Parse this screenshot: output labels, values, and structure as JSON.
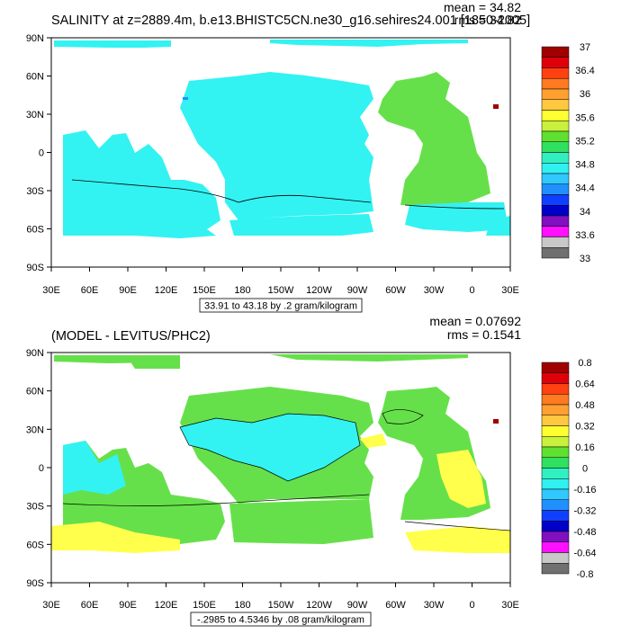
{
  "panels": [
    {
      "title": "SALINITY at z=2889.4m, b.e13.BHISTC5CN.ne30_g16.sehires24.001 [1850-2005]",
      "mean_text": "mean = 34.82",
      "rms_text": "rms = 34.82",
      "range_text": "33.91 to 43.18 by .2 gram/kilogram",
      "colorbar_labels": [
        "37",
        "36.4",
        "36",
        "35.6",
        "35.2",
        "34.8",
        "34.4",
        "34",
        "33.6",
        "33"
      ]
    },
    {
      "title": "(MODEL - LEVITUS/PHC2)",
      "mean_text": "mean = 0.07692",
      "rms_text": "rms = 0.1541",
      "range_text": "-.2985 to 4.5346 by .08 gram/kilogram",
      "colorbar_labels": [
        "0.8",
        "0.64",
        "0.48",
        "0.32",
        "0.16",
        "0",
        "-0.16",
        "-0.32",
        "-0.48",
        "-0.64",
        "-0.8"
      ]
    }
  ],
  "lat_ticks": [
    "90N",
    "60N",
    "30N",
    "0",
    "30S",
    "60S",
    "90S"
  ],
  "lon_ticks": [
    "30E",
    "60E",
    "90E",
    "120E",
    "150E",
    "180",
    "150W",
    "120W",
    "90W",
    "60W",
    "30W",
    "0",
    "30E"
  ],
  "colorbar_colors": [
    "#a00000",
    "#e0000a",
    "#ff4010",
    "#ff7a20",
    "#ffa030",
    "#ffc840",
    "#ffff30",
    "#c8f03c",
    "#60e030",
    "#30e060",
    "#30f0c0",
    "#30f0f0",
    "#30c8ff",
    "#2090ff",
    "#1040ff",
    "#0000c8",
    "#8010c0",
    "#ff10ff",
    "#c8c8c8",
    "#707070"
  ],
  "colors": {
    "ocean_cyan": "#33f2f2",
    "ocean_green": "#66e04a",
    "ocean_green2": "#5cde5c",
    "ocean_yellow": "#ffff4c",
    "ocean_teal": "#33e6c8"
  }
}
